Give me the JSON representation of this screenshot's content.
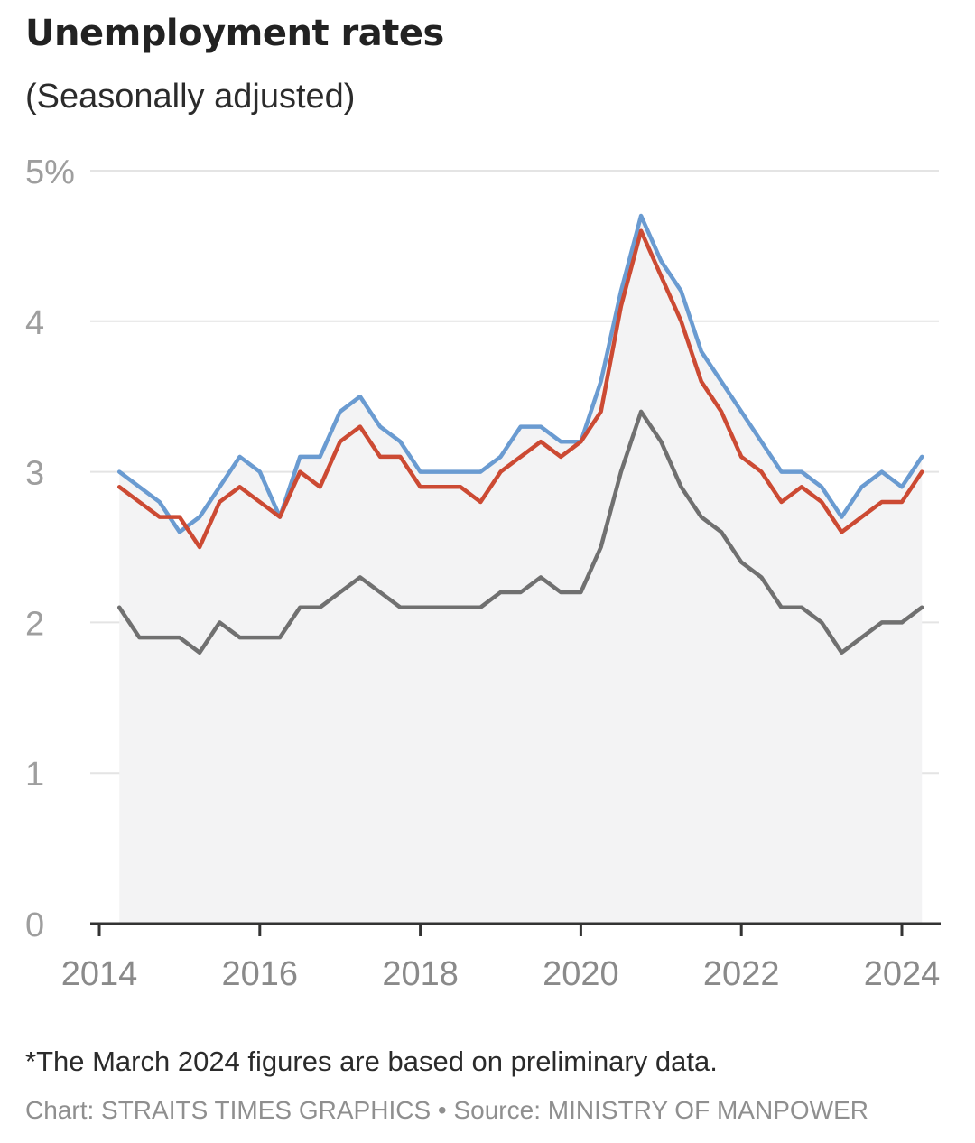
{
  "header": {
    "title": "Unemployment rates",
    "subtitle": "(Seasonally adjusted)"
  },
  "footer": {
    "note": "*The March 2024 figures are based on preliminary data.",
    "credit": "Chart: STRAITS TIMES GRAPHICS • Source: MINISTRY OF MANPOWER"
  },
  "chart_data": {
    "type": "line",
    "title": "Unemployment rates",
    "subtitle": "(Seasonally adjusted)",
    "xlabel": "",
    "ylabel": "",
    "ylim": [
      0,
      5
    ],
    "xlim": [
      2014,
      2024.25
    ],
    "grid": true,
    "shaded_area_under_top_series": true,
    "y_ticks": [
      "0",
      "1",
      "2",
      "3",
      "4",
      "5%"
    ],
    "x_ticks": [
      "2014",
      "2016",
      "2018",
      "2020",
      "2022",
      "2024"
    ],
    "x": [
      "2014-03",
      "2014-06",
      "2014-09",
      "2014-12",
      "2015-03",
      "2015-06",
      "2015-09",
      "2015-12",
      "2016-03",
      "2016-06",
      "2016-09",
      "2016-12",
      "2017-03",
      "2017-06",
      "2017-09",
      "2017-12",
      "2018-03",
      "2018-06",
      "2018-09",
      "2018-12",
      "2019-03",
      "2019-06",
      "2019-09",
      "2019-12",
      "2020-03",
      "2020-06",
      "2020-09",
      "2020-12",
      "2021-03",
      "2021-06",
      "2021-09",
      "2021-12",
      "2022-03",
      "2022-06",
      "2022-09",
      "2022-12",
      "2023-03",
      "2023-06",
      "2023-09",
      "2023-12",
      "2024-03"
    ],
    "series": [
      {
        "color": "#6a9bd1",
        "values": [
          3.0,
          2.9,
          2.8,
          2.6,
          2.7,
          2.9,
          3.1,
          3.0,
          2.7,
          3.1,
          3.1,
          3.4,
          3.5,
          3.3,
          3.2,
          3.0,
          3.0,
          3.0,
          3.0,
          3.1,
          3.3,
          3.3,
          3.2,
          3.2,
          3.6,
          4.2,
          4.7,
          4.4,
          4.2,
          3.8,
          3.6,
          3.4,
          3.2,
          3.0,
          3.0,
          2.9,
          2.7,
          2.9,
          3.0,
          2.9,
          3.1
        ]
      },
      {
        "color": "#cc4a33",
        "values": [
          2.9,
          2.8,
          2.7,
          2.7,
          2.5,
          2.8,
          2.9,
          2.8,
          2.7,
          3.0,
          2.9,
          3.2,
          3.3,
          3.1,
          3.1,
          2.9,
          2.9,
          2.9,
          2.8,
          3.0,
          3.1,
          3.2,
          3.1,
          3.2,
          3.4,
          4.1,
          4.6,
          4.3,
          4.0,
          3.6,
          3.4,
          3.1,
          3.0,
          2.8,
          2.9,
          2.8,
          2.6,
          2.7,
          2.8,
          2.8,
          3.0
        ]
      },
      {
        "color": "#707070",
        "values": [
          2.1,
          1.9,
          1.9,
          1.9,
          1.8,
          2.0,
          1.9,
          1.9,
          1.9,
          2.1,
          2.1,
          2.2,
          2.3,
          2.2,
          2.1,
          2.1,
          2.1,
          2.1,
          2.1,
          2.2,
          2.2,
          2.3,
          2.2,
          2.2,
          2.5,
          3.0,
          3.4,
          3.2,
          2.9,
          2.7,
          2.6,
          2.4,
          2.3,
          2.1,
          2.1,
          2.0,
          1.8,
          1.9,
          2.0,
          2.0,
          2.1
        ]
      }
    ]
  }
}
